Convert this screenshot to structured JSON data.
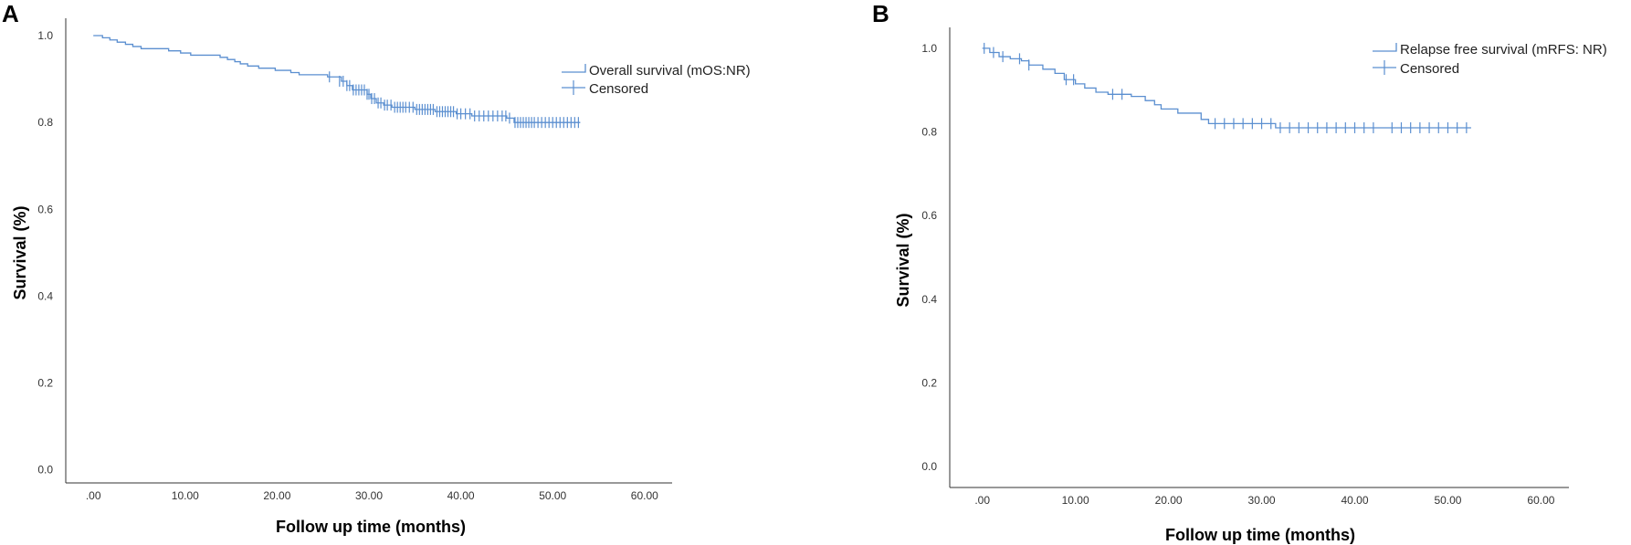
{
  "chart_data": [
    {
      "panel": "A",
      "type": "line",
      "subtype": "kaplan-meier",
      "title": "",
      "xlabel": "Follow up time (months)",
      "ylabel": "Survival (%)",
      "xlim": [
        -3,
        63
      ],
      "ylim": [
        -0.03,
        1.04
      ],
      "xticks": [
        0,
        10,
        20,
        30,
        40,
        50,
        60
      ],
      "xtick_labels": [
        ".00",
        "10.00",
        "20.00",
        "30.00",
        "40.00",
        "50.00",
        "60.00"
      ],
      "yticks": [
        0,
        0.2,
        0.4,
        0.6,
        0.8,
        1.0
      ],
      "ytick_labels": [
        "0.0",
        "0.2",
        "0.4",
        "0.6",
        "0.8",
        "1.0"
      ],
      "color": "#5b8fd0",
      "legend": {
        "position": "top-right",
        "curve_label": "Overall survival (mOS:NR)",
        "censor_label": "Censored"
      },
      "series": [
        {
          "name": "Overall survival (mOS:NR)",
          "steps": [
            [
              0,
              1.0
            ],
            [
              1,
              0.995
            ],
            [
              1.8,
              0.99
            ],
            [
              2.6,
              0.985
            ],
            [
              3.5,
              0.98
            ],
            [
              4.3,
              0.975
            ],
            [
              5.2,
              0.97
            ],
            [
              8.2,
              0.965
            ],
            [
              9.5,
              0.96
            ],
            [
              10.6,
              0.955
            ],
            [
              13.8,
              0.95
            ],
            [
              14.6,
              0.945
            ],
            [
              15.4,
              0.94
            ],
            [
              16.0,
              0.935
            ],
            [
              16.8,
              0.93
            ],
            [
              18.0,
              0.925
            ],
            [
              19.8,
              0.92
            ],
            [
              21.5,
              0.915
            ],
            [
              22.4,
              0.91
            ],
            [
              25.5,
              0.905
            ],
            [
              27.0,
              0.895
            ],
            [
              27.6,
              0.885
            ],
            [
              28.2,
              0.875
            ],
            [
              29.8,
              0.865
            ],
            [
              30.2,
              0.855
            ],
            [
              30.8,
              0.845
            ],
            [
              31.6,
              0.84
            ],
            [
              32.5,
              0.835
            ],
            [
              35.0,
              0.83
            ],
            [
              37.2,
              0.825
            ],
            [
              39.5,
              0.82
            ],
            [
              41.2,
              0.815
            ],
            [
              45.0,
              0.81
            ],
            [
              45.8,
              0.8
            ],
            [
              53.0,
              0.8
            ]
          ],
          "censored": [
            [
              25.7,
              0.905
            ],
            [
              26.8,
              0.895
            ],
            [
              27.2,
              0.895
            ],
            [
              27.6,
              0.885
            ],
            [
              27.9,
              0.885
            ],
            [
              28.3,
              0.875
            ],
            [
              28.6,
              0.875
            ],
            [
              28.9,
              0.875
            ],
            [
              29.2,
              0.875
            ],
            [
              29.5,
              0.875
            ],
            [
              29.8,
              0.865
            ],
            [
              30.0,
              0.865
            ],
            [
              30.3,
              0.855
            ],
            [
              30.6,
              0.855
            ],
            [
              31.0,
              0.845
            ],
            [
              31.3,
              0.845
            ],
            [
              31.7,
              0.84
            ],
            [
              32.0,
              0.84
            ],
            [
              32.4,
              0.84
            ],
            [
              32.8,
              0.835
            ],
            [
              33.1,
              0.835
            ],
            [
              33.4,
              0.835
            ],
            [
              33.7,
              0.835
            ],
            [
              34.0,
              0.835
            ],
            [
              34.4,
              0.835
            ],
            [
              34.8,
              0.835
            ],
            [
              35.2,
              0.83
            ],
            [
              35.5,
              0.83
            ],
            [
              35.8,
              0.83
            ],
            [
              36.1,
              0.83
            ],
            [
              36.4,
              0.83
            ],
            [
              36.7,
              0.83
            ],
            [
              37.0,
              0.83
            ],
            [
              37.4,
              0.825
            ],
            [
              37.7,
              0.825
            ],
            [
              38.0,
              0.825
            ],
            [
              38.3,
              0.825
            ],
            [
              38.6,
              0.825
            ],
            [
              38.9,
              0.825
            ],
            [
              39.2,
              0.825
            ],
            [
              39.6,
              0.82
            ],
            [
              40.0,
              0.82
            ],
            [
              40.5,
              0.82
            ],
            [
              41.0,
              0.82
            ],
            [
              41.5,
              0.815
            ],
            [
              42.0,
              0.815
            ],
            [
              42.5,
              0.815
            ],
            [
              43.0,
              0.815
            ],
            [
              43.5,
              0.815
            ],
            [
              44.0,
              0.815
            ],
            [
              44.5,
              0.815
            ],
            [
              44.9,
              0.815
            ],
            [
              45.3,
              0.81
            ],
            [
              45.9,
              0.8
            ],
            [
              46.2,
              0.8
            ],
            [
              46.5,
              0.8
            ],
            [
              46.8,
              0.8
            ],
            [
              47.1,
              0.8
            ],
            [
              47.4,
              0.8
            ],
            [
              47.7,
              0.8
            ],
            [
              48.0,
              0.8
            ],
            [
              48.4,
              0.8
            ],
            [
              48.8,
              0.8
            ],
            [
              49.2,
              0.8
            ],
            [
              49.6,
              0.8
            ],
            [
              50.0,
              0.8
            ],
            [
              50.4,
              0.8
            ],
            [
              50.8,
              0.8
            ],
            [
              51.2,
              0.8
            ],
            [
              51.6,
              0.8
            ],
            [
              52.0,
              0.8
            ],
            [
              52.4,
              0.8
            ],
            [
              52.8,
              0.8
            ]
          ]
        }
      ]
    },
    {
      "panel": "B",
      "type": "line",
      "subtype": "kaplan-meier",
      "title": "",
      "xlabel": "Follow up time (months)",
      "ylabel": "Survival (%)",
      "xlim": [
        -3.5,
        63
      ],
      "ylim": [
        -0.05,
        1.05
      ],
      "xticks": [
        0,
        10,
        20,
        30,
        40,
        50,
        60
      ],
      "xtick_labels": [
        ".00",
        "10.00",
        "20.00",
        "30.00",
        "40.00",
        "50.00",
        "60.00"
      ],
      "yticks": [
        0,
        0.2,
        0.4,
        0.6,
        0.8,
        1.0
      ],
      "ytick_labels": [
        "0.0",
        "0.2",
        "0.4",
        "0.6",
        "0.8",
        "1.0"
      ],
      "color": "#5b8fd0",
      "legend": {
        "position": "top-right",
        "curve_label": "Relapse free survival (mRFS: NR)",
        "censor_label": "Censored"
      },
      "series": [
        {
          "name": "Relapse free survival (mRFS: NR)",
          "steps": [
            [
              0,
              1.0
            ],
            [
              0.8,
              0.99
            ],
            [
              1.8,
              0.98
            ],
            [
              3.0,
              0.975
            ],
            [
              4.2,
              0.97
            ],
            [
              5.0,
              0.96
            ],
            [
              6.5,
              0.95
            ],
            [
              7.8,
              0.94
            ],
            [
              8.8,
              0.925
            ],
            [
              10.0,
              0.915
            ],
            [
              11.0,
              0.905
            ],
            [
              12.2,
              0.895
            ],
            [
              13.5,
              0.89
            ],
            [
              16.0,
              0.885
            ],
            [
              17.5,
              0.875
            ],
            [
              18.5,
              0.865
            ],
            [
              19.2,
              0.855
            ],
            [
              21.0,
              0.845
            ],
            [
              23.5,
              0.83
            ],
            [
              24.3,
              0.82
            ],
            [
              31.5,
              0.81
            ],
            [
              52.5,
              0.81
            ]
          ],
          "censored": [
            [
              0.2,
              1.0
            ],
            [
              1.2,
              0.99
            ],
            [
              2.2,
              0.98
            ],
            [
              4.0,
              0.975
            ],
            [
              5.0,
              0.96
            ],
            [
              9.0,
              0.925
            ],
            [
              9.8,
              0.925
            ],
            [
              14.0,
              0.89
            ],
            [
              15.0,
              0.89
            ],
            [
              25.0,
              0.82
            ],
            [
              26.0,
              0.82
            ],
            [
              27.0,
              0.82
            ],
            [
              28.0,
              0.82
            ],
            [
              29.0,
              0.82
            ],
            [
              30.0,
              0.82
            ],
            [
              31.0,
              0.82
            ],
            [
              32.0,
              0.81
            ],
            [
              33.0,
              0.81
            ],
            [
              34.0,
              0.81
            ],
            [
              35.0,
              0.81
            ],
            [
              36.0,
              0.81
            ],
            [
              37.0,
              0.81
            ],
            [
              38.0,
              0.81
            ],
            [
              39.0,
              0.81
            ],
            [
              40.0,
              0.81
            ],
            [
              41.0,
              0.81
            ],
            [
              42.0,
              0.81
            ],
            [
              44.0,
              0.81
            ],
            [
              45.0,
              0.81
            ],
            [
              46.0,
              0.81
            ],
            [
              47.0,
              0.81
            ],
            [
              48.0,
              0.81
            ],
            [
              49.0,
              0.81
            ],
            [
              50.0,
              0.81
            ],
            [
              51.0,
              0.81
            ],
            [
              52.0,
              0.81
            ]
          ]
        }
      ]
    }
  ]
}
